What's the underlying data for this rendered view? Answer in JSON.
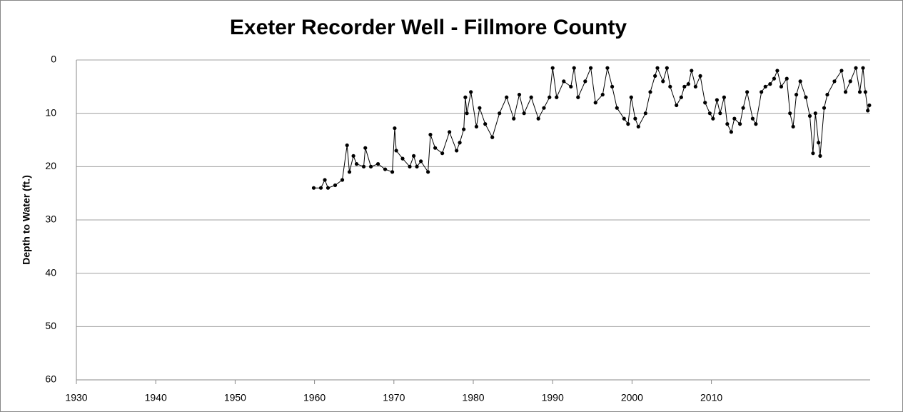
{
  "chart_data": {
    "type": "line",
    "title": "Exeter Recorder Well - Fillmore County",
    "y_label": "Depth to Water (ft.)",
    "xlim": [
      1930,
      2030
    ],
    "xticks": [
      1930,
      1940,
      1950,
      1960,
      1970,
      1980,
      1990,
      2000,
      2010
    ],
    "ylim": [
      0,
      60
    ],
    "yticks": [
      0,
      10,
      20,
      30,
      40,
      50,
      60
    ],
    "y_inverted": true,
    "grid": true,
    "markers": true,
    "x": [
      1959.9,
      1960.8,
      1961.3,
      1961.7,
      1962.6,
      1963.5,
      1964.1,
      1964.4,
      1964.9,
      1965.3,
      1966.2,
      1966.4,
      1967.1,
      1968.0,
      1968.9,
      1969.8,
      1970.1,
      1970.3,
      1971.1,
      1972.0,
      1972.5,
      1972.9,
      1973.4,
      1974.3,
      1974.6,
      1975.2,
      1976.1,
      1977.0,
      1977.9,
      1978.3,
      1978.8,
      1979.0,
      1979.2,
      1979.7,
      1980.4,
      1980.8,
      1981.5,
      1982.4,
      1983.3,
      1984.2,
      1985.1,
      1985.8,
      1986.4,
      1987.3,
      1988.2,
      1988.9,
      1989.6,
      1990.0,
      1990.5,
      1991.4,
      1992.3,
      1992.7,
      1993.2,
      1994.1,
      1994.8,
      1995.4,
      1996.3,
      1996.9,
      1997.5,
      1998.1,
      1999.0,
      1999.5,
      1999.9,
      2000.4,
      2000.8,
      2001.7,
      2002.3,
      2002.9,
      2003.2,
      2003.9,
      2004.4,
      2004.8,
      2005.6,
      2006.2,
      2006.6,
      2007.1,
      2007.5,
      2008.0,
      2008.6,
      2009.2,
      2009.8,
      2010.2,
      2010.7,
      2011.1,
      2011.6,
      2012.0,
      2012.5,
      2012.9,
      2013.6,
      2014.0,
      2014.5,
      2015.2,
      2015.6,
      2016.3,
      2016.8,
      2017.4,
      2017.9,
      2018.3,
      2018.8,
      2019.5,
      2019.9,
      2020.3,
      2020.7,
      2021.2,
      2021.9,
      2022.4,
      2022.8,
      2023.1,
      2023.5,
      2023.7,
      2024.2,
      2024.6,
      2025.5,
      2026.4,
      2026.9,
      2027.5,
      2028.2,
      2028.7,
      2029.1,
      2029.4,
      2029.7,
      2029.9
    ],
    "series": [
      {
        "name": "Depth to Water",
        "color": "#000000",
        "values": [
          24,
          24,
          22.5,
          24,
          23.5,
          22.5,
          16,
          21,
          18,
          19.5,
          20,
          16.5,
          20,
          19.5,
          20.5,
          21,
          12.8,
          17,
          18.5,
          20,
          18,
          20,
          19,
          21,
          14,
          16.5,
          17.5,
          13.5,
          17,
          15.5,
          13,
          7,
          10,
          6,
          12.5,
          9,
          12,
          14.5,
          10,
          7,
          11,
          6.5,
          10,
          7,
          11,
          9,
          7,
          1.5,
          7,
          4,
          5,
          1.5,
          7,
          4,
          1.5,
          8,
          6.5,
          1.5,
          5,
          9,
          11,
          12,
          7,
          11,
          12.5,
          10,
          6,
          3,
          1.5,
          4,
          1.5,
          5,
          8.5,
          7,
          5,
          4.5,
          2,
          5,
          3,
          8,
          10,
          11,
          7.5,
          10,
          7,
          12,
          13.5,
          11,
          12,
          9,
          6,
          11,
          12,
          6,
          5,
          4.5,
          3.5,
          2,
          5,
          3.5,
          10,
          12.5,
          6.5,
          4,
          7,
          10.5,
          17.5,
          10,
          15.5,
          18,
          9,
          6.5,
          4,
          2,
          6,
          4,
          1.5,
          6,
          1.5,
          6,
          9.5,
          8.5
        ]
      }
    ]
  }
}
